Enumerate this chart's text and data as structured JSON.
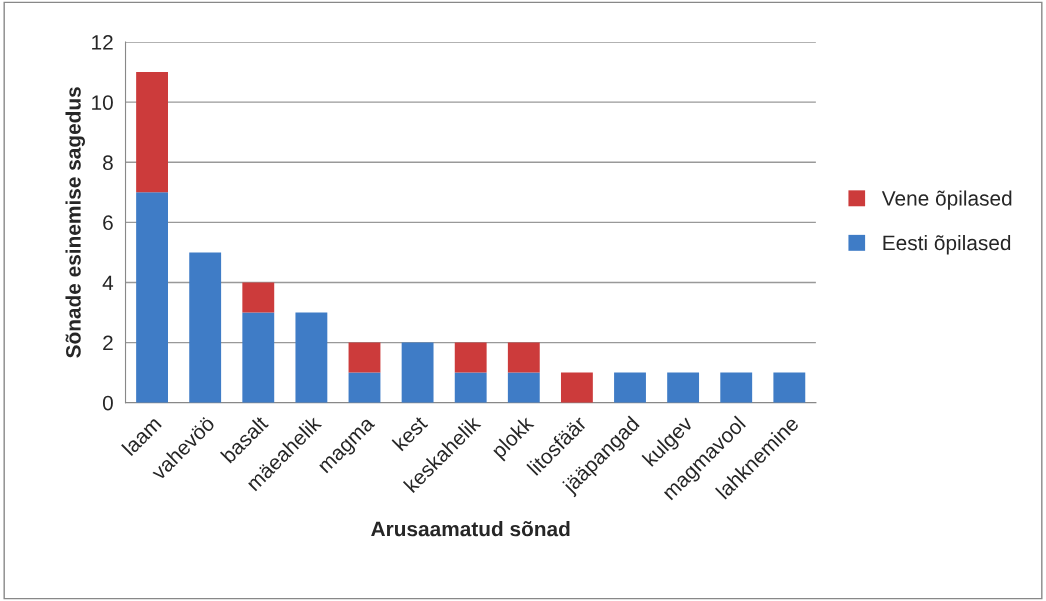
{
  "chart_data": {
    "type": "bar",
    "stacked": true,
    "xlabel": "Arusaamatud sõnad",
    "ylabel": "Sõnade esinemise sagedus",
    "categories": [
      "laam",
      "vahevöö",
      "basalt",
      "mäeahelik",
      "magma",
      "kest",
      "keskahelik",
      "plokk",
      "litosfäär",
      "jääpangad",
      "kulgev",
      "magmavool",
      "lahknemine"
    ],
    "series": [
      {
        "name": "Eesti õpilased",
        "color": "#3f7cc6",
        "values": [
          7,
          5,
          3,
          3,
          1,
          2,
          1,
          1,
          0,
          1,
          1,
          1,
          1
        ]
      },
      {
        "name": "Vene õpilased",
        "color": "#cc3b3b",
        "values": [
          4,
          0,
          1,
          0,
          1,
          0,
          1,
          1,
          1,
          0,
          0,
          0,
          0
        ]
      }
    ],
    "ylim": [
      0,
      12
    ],
    "yticks": [
      0,
      2,
      4,
      6,
      8,
      10,
      12
    ],
    "grid": "y",
    "legend": "right"
  }
}
